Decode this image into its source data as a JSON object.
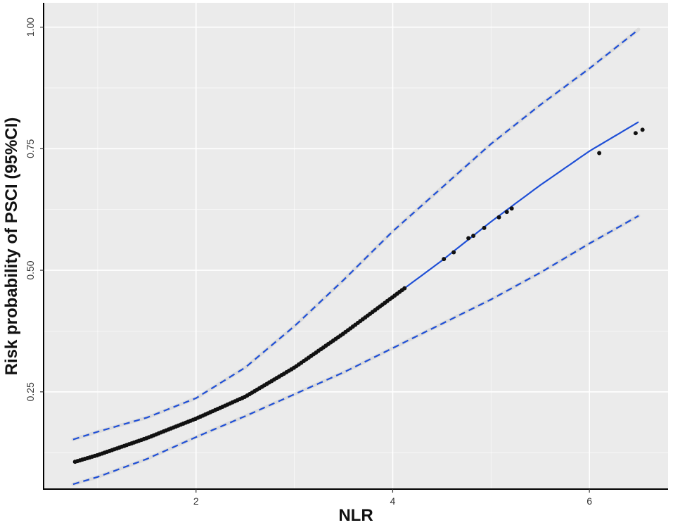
{
  "chart_data": {
    "type": "line",
    "title": "",
    "xlabel": "NLR",
    "ylabel": "Risk probability of PSCI (95%CI)",
    "xlim": [
      0.45,
      6.8
    ],
    "ylim": [
      0.05,
      1.05
    ],
    "x_ticks": [
      2,
      4,
      6
    ],
    "x_tick_labels": [
      "2",
      "4",
      "6"
    ],
    "y_ticks": [
      0.25,
      0.5,
      0.75,
      1.0
    ],
    "y_tick_labels": [
      "0.25",
      "0.50",
      "0.75",
      "1.00"
    ],
    "x_minor_ticks": [
      1,
      3,
      5
    ],
    "y_minor_ticks": [
      0.125,
      0.375,
      0.625,
      0.875
    ],
    "grid": true,
    "colors": {
      "panel": "#ebebeb",
      "grid": "#ffffff",
      "line": "#1f4fd6",
      "points": "#111111",
      "ci_band": "#bdbdbd",
      "axis": "#000000"
    },
    "series": [
      {
        "role": "fitted",
        "style": "solid",
        "x": [
          0.75,
          1,
          1.5,
          2,
          2.5,
          3,
          3.5,
          4,
          4.5,
          5,
          5.5,
          6,
          6.5
        ],
        "y": [
          0.105,
          0.12,
          0.155,
          0.195,
          0.24,
          0.3,
          0.37,
          0.445,
          0.52,
          0.6,
          0.675,
          0.745,
          0.805
        ]
      },
      {
        "role": "upper-ci",
        "style": "dashed",
        "x": [
          0.75,
          1,
          1.5,
          2,
          2.5,
          3,
          3.5,
          4,
          4.5,
          5,
          5.5,
          6,
          6.5
        ],
        "y": [
          0.152,
          0.168,
          0.197,
          0.237,
          0.3,
          0.385,
          0.48,
          0.58,
          0.67,
          0.76,
          0.84,
          0.915,
          0.995
        ]
      },
      {
        "role": "lower-ci",
        "style": "dashed",
        "x": [
          0.75,
          1,
          1.5,
          2,
          2.5,
          3,
          3.5,
          4,
          4.5,
          5,
          5.5,
          6,
          6.5
        ],
        "y": [
          0.06,
          0.075,
          0.112,
          0.157,
          0.2,
          0.245,
          0.29,
          0.34,
          0.39,
          0.44,
          0.495,
          0.555,
          0.612
        ]
      }
    ],
    "points_range": {
      "x_min": 0.77,
      "x_max": 4.12,
      "step": 0.025
    },
    "points_extra": [
      {
        "x": 4.52,
        "y": 0.523
      },
      {
        "x": 4.62,
        "y": 0.537
      },
      {
        "x": 4.77,
        "y": 0.566
      },
      {
        "x": 4.82,
        "y": 0.571
      },
      {
        "x": 4.93,
        "y": 0.587
      },
      {
        "x": 5.08,
        "y": 0.609
      },
      {
        "x": 5.16,
        "y": 0.62
      },
      {
        "x": 5.21,
        "y": 0.627
      },
      {
        "x": 6.1,
        "y": 0.741
      },
      {
        "x": 6.47,
        "y": 0.782
      },
      {
        "x": 6.54,
        "y": 0.789
      }
    ]
  }
}
